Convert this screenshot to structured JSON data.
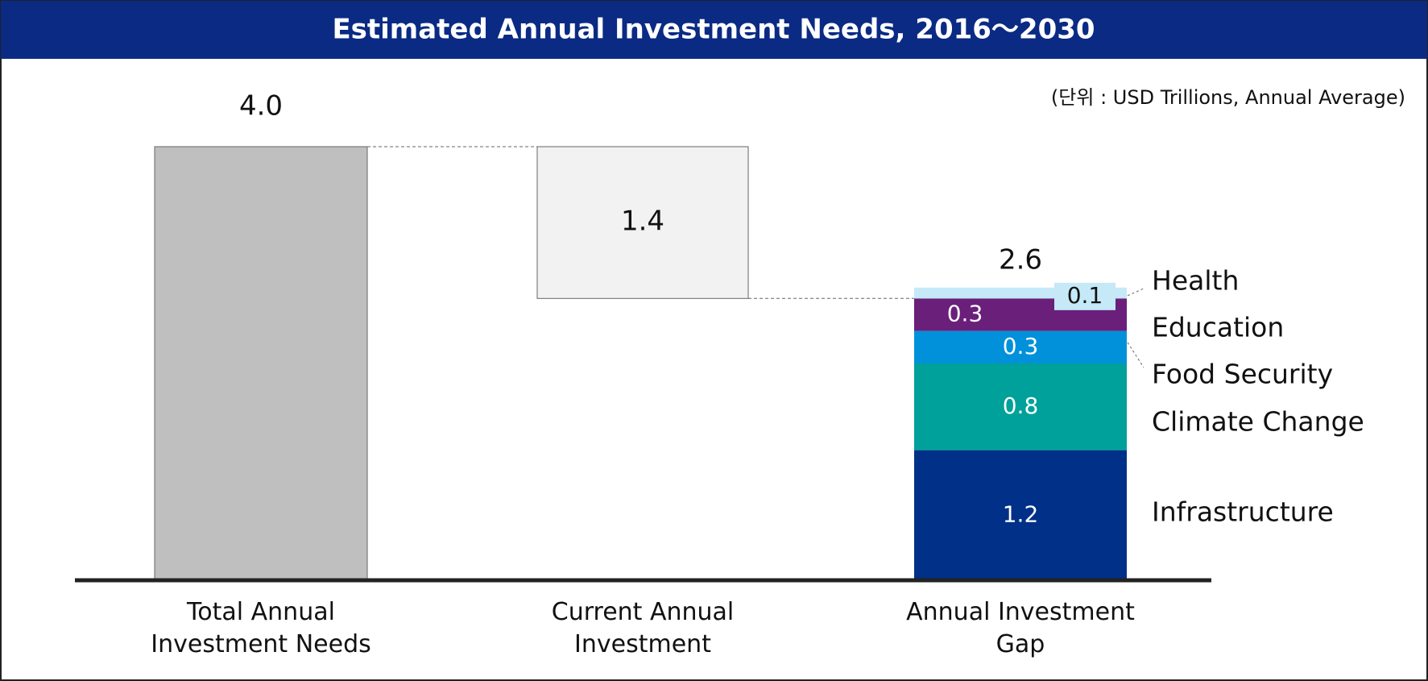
{
  "chart_data": {
    "type": "waterfall",
    "title": "Estimated Annual Investment Needs, 2016～2030",
    "subtitle": "(단위 : USD Trillions, Annual Average)",
    "categories": [
      "Total Annual Investment Needs",
      "Current Annual Investment",
      "Annual Investment Gap"
    ],
    "values": [
      4.0,
      1.4,
      2.6
    ],
    "value_labels": [
      "4.0",
      "1.4",
      "2.6"
    ],
    "total_color": "#bfbfbf",
    "current_color": "#f2f2f2",
    "breakdown": [
      {
        "name": "Infrastructure",
        "color": "#003087",
        "value": 1.2
      },
      {
        "name": "Climate Change",
        "color": "#00a19a",
        "value": 0.8
      },
      {
        "name": "Food Security",
        "color": "#0091da",
        "value": 0.3
      },
      {
        "name": "Education",
        "color": "#6a1f7a",
        "value": 0.3
      },
      {
        "name": "Health",
        "color": "#c5e9f7",
        "value": 0.1
      }
    ]
  }
}
